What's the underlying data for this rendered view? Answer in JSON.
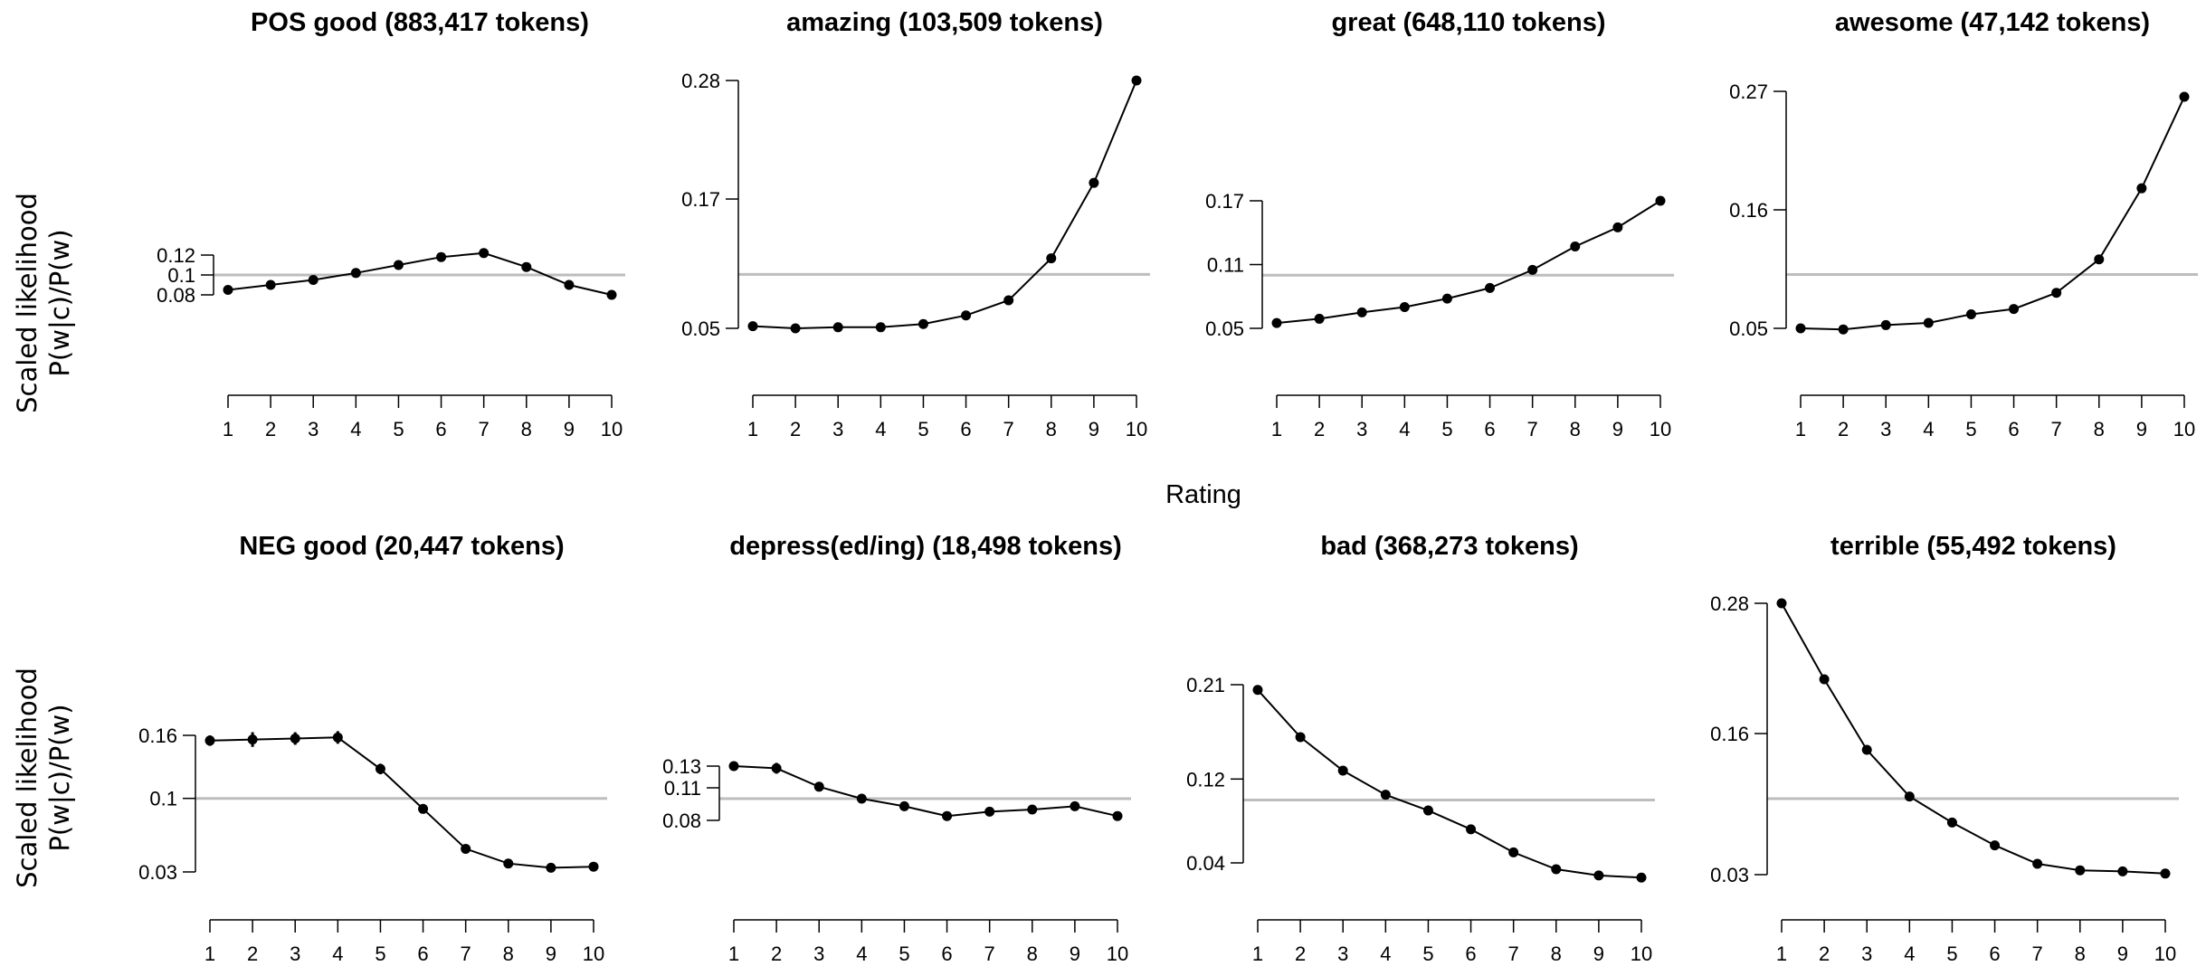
{
  "figure": {
    "y_axis_label_line1": "Scaled likelihood",
    "y_axis_label_line2": "P(w|c)/P(w)",
    "x_axis_label": "Rating",
    "reference_line_value": 0.1,
    "colors": {
      "line": "#000000",
      "reference": "#bdbdbd",
      "axis": "#000000"
    }
  },
  "chart_data": [
    {
      "type": "line",
      "title": "POS good (883,417 tokens)",
      "x": [
        1,
        2,
        3,
        4,
        5,
        6,
        7,
        8,
        9,
        10
      ],
      "values": [
        0.085,
        0.09,
        0.095,
        0.102,
        0.11,
        0.118,
        0.122,
        0.108,
        0.09,
        0.08
      ],
      "yticks": [
        0.08,
        0.1,
        0.12
      ],
      "ytick_labels": [
        "0.08",
        "0.1",
        "0.12"
      ],
      "ylim": [
        0.08,
        0.12
      ],
      "error": [
        0.001,
        0.001,
        0.001,
        0.001,
        0.001,
        0.001,
        0.001,
        0.001,
        0.001,
        0.001
      ]
    },
    {
      "type": "line",
      "title": "amazing (103,509 tokens)",
      "x": [
        1,
        2,
        3,
        4,
        5,
        6,
        7,
        8,
        9,
        10
      ],
      "values": [
        0.052,
        0.05,
        0.051,
        0.051,
        0.054,
        0.062,
        0.076,
        0.115,
        0.185,
        0.28
      ],
      "yticks": [
        0.05,
        0.17,
        0.28
      ],
      "ytick_labels": [
        "0.05",
        "0.17",
        "0.28"
      ],
      "ylim": [
        0.05,
        0.28
      ],
      "error": [
        0.001,
        0.001,
        0.001,
        0.001,
        0.001,
        0.001,
        0.002,
        0.002,
        0.002,
        0.002
      ]
    },
    {
      "type": "line",
      "title": "great (648,110 tokens)",
      "x": [
        1,
        2,
        3,
        4,
        5,
        6,
        7,
        8,
        9,
        10
      ],
      "values": [
        0.055,
        0.059,
        0.065,
        0.07,
        0.078,
        0.088,
        0.105,
        0.127,
        0.145,
        0.17
      ],
      "yticks": [
        0.05,
        0.11,
        0.17
      ],
      "ytick_labels": [
        "0.05",
        "0.11",
        "0.17"
      ],
      "ylim": [
        0.05,
        0.17
      ],
      "error": [
        0.001,
        0.001,
        0.001,
        0.001,
        0.001,
        0.001,
        0.001,
        0.001,
        0.001,
        0.001
      ]
    },
    {
      "type": "line",
      "title": "awesome (47,142 tokens)",
      "x": [
        1,
        2,
        3,
        4,
        5,
        6,
        7,
        8,
        9,
        10
      ],
      "values": [
        0.05,
        0.049,
        0.053,
        0.055,
        0.063,
        0.068,
        0.083,
        0.114,
        0.18,
        0.265
      ],
      "yticks": [
        0.05,
        0.16,
        0.27
      ],
      "ytick_labels": [
        "0.05",
        "0.16",
        "0.27"
      ],
      "ylim": [
        0.05,
        0.27
      ],
      "error": [
        0.002,
        0.002,
        0.002,
        0.002,
        0.002,
        0.002,
        0.002,
        0.003,
        0.003,
        0.004
      ]
    },
    {
      "type": "line",
      "title": "NEG good (20,447 tokens)",
      "x": [
        1,
        2,
        3,
        4,
        5,
        6,
        7,
        8,
        9,
        10
      ],
      "values": [
        0.155,
        0.156,
        0.157,
        0.158,
        0.128,
        0.09,
        0.052,
        0.038,
        0.034,
        0.035
      ],
      "yticks": [
        0.03,
        0.1,
        0.16
      ],
      "ytick_labels": [
        "0.03",
        "0.1",
        "0.16"
      ],
      "ylim": [
        0.03,
        0.16
      ],
      "error": [
        0.005,
        0.007,
        0.006,
        0.006,
        0.005,
        0.003,
        0.002,
        0.001,
        0.001,
        0.001
      ]
    },
    {
      "type": "line",
      "title": "depress(ed/ing) (18,498 tokens)",
      "x": [
        1,
        2,
        3,
        4,
        5,
        6,
        7,
        8,
        9,
        10
      ],
      "values": [
        0.13,
        0.128,
        0.111,
        0.1,
        0.093,
        0.084,
        0.088,
        0.09,
        0.093,
        0.084
      ],
      "yticks": [
        0.08,
        0.11,
        0.13
      ],
      "ytick_labels": [
        "0.08",
        "0.11",
        "0.13"
      ],
      "ylim": [
        0.08,
        0.13
      ],
      "error": [
        0.004,
        0.005,
        0.004,
        0.003,
        0.002,
        0.002,
        0.002,
        0.002,
        0.002,
        0.002
      ]
    },
    {
      "type": "line",
      "title": "bad (368,273 tokens)",
      "x": [
        1,
        2,
        3,
        4,
        5,
        6,
        7,
        8,
        9,
        10
      ],
      "values": [
        0.205,
        0.16,
        0.128,
        0.105,
        0.09,
        0.072,
        0.05,
        0.034,
        0.028,
        0.026
      ],
      "yticks": [
        0.04,
        0.12,
        0.21
      ],
      "ytick_labels": [
        "0.04",
        "0.12",
        "0.21"
      ],
      "ylim": [
        0.04,
        0.21
      ],
      "error": [
        0.001,
        0.001,
        0.001,
        0.001,
        0.001,
        0.001,
        0.001,
        0.001,
        0.001,
        0.001
      ]
    },
    {
      "type": "line",
      "title": "terrible (55,492 tokens)",
      "x": [
        1,
        2,
        3,
        4,
        5,
        6,
        7,
        8,
        9,
        10
      ],
      "values": [
        0.28,
        0.21,
        0.145,
        0.102,
        0.078,
        0.057,
        0.04,
        0.034,
        0.033,
        0.031
      ],
      "yticks": [
        0.03,
        0.16,
        0.28
      ],
      "ytick_labels": [
        "0.03",
        "0.16",
        "0.28"
      ],
      "ylim": [
        0.03,
        0.28
      ],
      "error": [
        0.004,
        0.004,
        0.003,
        0.002,
        0.002,
        0.001,
        0.001,
        0.001,
        0.001,
        0.001
      ]
    }
  ]
}
